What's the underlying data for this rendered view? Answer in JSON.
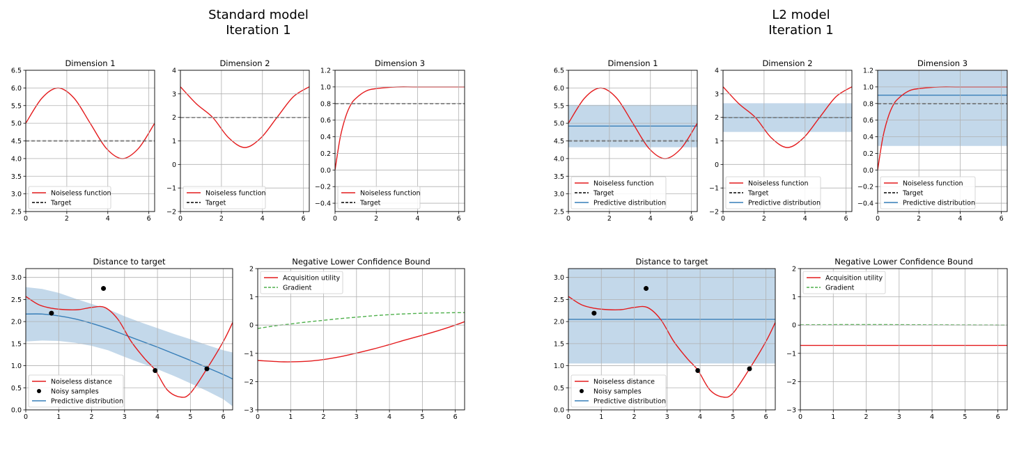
{
  "figures": [
    {
      "id": "standard",
      "title_line1": "Standard model",
      "title_line2": "Iteration 1",
      "subplots": [
        {
          "id": "dim1",
          "title": "Dimension 1",
          "has_pred": false
        },
        {
          "id": "dim2",
          "title": "Dimension 2",
          "has_pred": false
        },
        {
          "id": "dim3",
          "title": "Dimension 3",
          "has_pred": false
        },
        {
          "id": "dist",
          "title": "Distance to target"
        },
        {
          "id": "lcb",
          "title": "Negative Lower Confidence Bound"
        }
      ]
    },
    {
      "id": "l2",
      "title_line1": "L2 model",
      "title_line2": "Iteration 1",
      "subplots": [
        {
          "id": "dim1",
          "title": "Dimension 1",
          "has_pred": true
        },
        {
          "id": "dim2",
          "title": "Dimension 2",
          "has_pred": true
        },
        {
          "id": "dim3",
          "title": "Dimension 3",
          "has_pred": true
        },
        {
          "id": "dist",
          "title": "Distance to target"
        },
        {
          "id": "lcb",
          "title": "Negative Lower Confidence Bound"
        }
      ]
    }
  ],
  "legend_labels": {
    "noiseless_function": "Noiseless function",
    "target": "Target",
    "predictive_distribution": "Predictive distribution",
    "noiseless_distance": "Noiseless distance",
    "noisy_samples": "Noisy samples",
    "acquisition_utility": "Acquisition utility",
    "gradient": "Gradient"
  },
  "colors": {
    "noiseless": "#e41a1c",
    "target": "#000000",
    "predictive": "#377eb8",
    "band": "#b0cde3",
    "gradient": "#4daf4a",
    "grid": "#b0b0b0"
  },
  "chart_data": [
    {
      "type": "line",
      "figure": "Standard model",
      "title": "Dimension 1",
      "xlim": [
        0,
        6.283
      ],
      "ylim": [
        2.5,
        6.5
      ],
      "x_ticks": [
        "0",
        "2",
        "4",
        "6"
      ],
      "y_ticks": [
        "2.5",
        "3.0",
        "3.5",
        "4.0",
        "4.5",
        "5.0",
        "5.5",
        "6.0",
        "6.5"
      ],
      "series": [
        {
          "name": "Noiseless function",
          "x": [
            0,
            0.785,
            1.571,
            2.356,
            3.142,
            3.927,
            4.712,
            5.498,
            6.283
          ],
          "values": [
            5.0,
            5.71,
            6.0,
            5.71,
            5.0,
            4.29,
            4.0,
            4.29,
            5.0
          ]
        },
        {
          "name": "Target",
          "x": [
            0,
            6.283
          ],
          "values": [
            4.5,
            4.5
          ]
        }
      ]
    },
    {
      "type": "line",
      "figure": "Standard model",
      "title": "Dimension 2",
      "xlim": [
        0,
        6.283
      ],
      "ylim": [
        -2,
        4
      ],
      "x_ticks": [
        "0",
        "2",
        "4",
        "6"
      ],
      "y_ticks": [
        "−2",
        "−1",
        "0",
        "1",
        "2",
        "3",
        "4"
      ],
      "series": [
        {
          "name": "Noiseless function",
          "x": [
            0,
            0.785,
            1.571,
            2.356,
            3.142,
            3.927,
            4.712,
            5.498,
            6.283
          ],
          "values": [
            3.3,
            2.57,
            2.0,
            1.13,
            0.72,
            1.13,
            2.0,
            2.87,
            3.3
          ]
        },
        {
          "name": "Target",
          "x": [
            0,
            6.283
          ],
          "values": [
            2.0,
            2.0
          ]
        }
      ]
    },
    {
      "type": "line",
      "figure": "Standard model",
      "title": "Dimension 3",
      "xlim": [
        0,
        6.283
      ],
      "ylim": [
        -0.5,
        1.2
      ],
      "x_ticks": [
        "0",
        "2",
        "4",
        "6"
      ],
      "y_ticks": [
        "−0.4",
        "−0.2",
        "0.0",
        "0.2",
        "0.4",
        "0.6",
        "0.8",
        "1.0",
        "1.2"
      ],
      "series": [
        {
          "name": "Noiseless function",
          "x": [
            0,
            0.25,
            0.5,
            0.75,
            1.0,
            1.5,
            2.0,
            3.0,
            4.0,
            6.283
          ],
          "values": [
            0.0,
            0.39,
            0.63,
            0.78,
            0.86,
            0.95,
            0.98,
            1.0,
            1.0,
            1.0
          ]
        },
        {
          "name": "Target",
          "x": [
            0,
            6.283
          ],
          "values": [
            0.8,
            0.8
          ]
        }
      ]
    },
    {
      "type": "line",
      "figure": "Standard model",
      "title": "Distance to target",
      "xlim": [
        0,
        6.283
      ],
      "ylim": [
        0,
        3.2
      ],
      "x_ticks": [
        "0",
        "1",
        "2",
        "3",
        "4",
        "5",
        "6"
      ],
      "y_ticks": [
        "0.0",
        "0.5",
        "1.0",
        "1.5",
        "2.0",
        "2.5",
        "3.0"
      ],
      "series": [
        {
          "name": "Noiseless distance",
          "x": [
            0,
            0.4,
            0.8,
            1.2,
            1.6,
            2.0,
            2.4,
            2.8,
            3.2,
            3.6,
            3.93,
            4.3,
            4.7,
            5.0,
            5.5,
            6.0,
            6.283
          ],
          "values": [
            2.57,
            2.38,
            2.3,
            2.27,
            2.27,
            2.32,
            2.32,
            2.05,
            1.55,
            1.17,
            0.9,
            0.45,
            0.29,
            0.38,
            0.93,
            1.55,
            1.98
          ]
        },
        {
          "name": "Predictive distribution",
          "x": [
            0,
            0.5,
            1.0,
            1.5,
            2.0,
            2.5,
            3.0,
            3.5,
            4.0,
            4.5,
            5.0,
            5.5,
            6.0,
            6.283
          ],
          "values": [
            2.17,
            2.17,
            2.13,
            2.06,
            1.96,
            1.84,
            1.7,
            1.56,
            1.42,
            1.27,
            1.12,
            0.96,
            0.8,
            0.7
          ],
          "upper": [
            2.78,
            2.74,
            2.65,
            2.52,
            2.4,
            2.28,
            2.12,
            1.98,
            1.85,
            1.72,
            1.6,
            1.47,
            1.35,
            1.3
          ],
          "lower": [
            1.55,
            1.57,
            1.56,
            1.52,
            1.45,
            1.35,
            1.2,
            1.06,
            0.92,
            0.77,
            0.6,
            0.43,
            0.24,
            0.08
          ]
        },
        {
          "name": "Noisy samples",
          "type": "scatter",
          "x": [
            0.78,
            2.36,
            3.93,
            5.5
          ],
          "values": [
            2.19,
            2.75,
            0.89,
            0.93
          ]
        }
      ]
    },
    {
      "type": "line",
      "figure": "Standard model",
      "title": "Negative Lower Confidence Bound",
      "xlim": [
        0,
        6.283
      ],
      "ylim": [
        -3,
        2
      ],
      "x_ticks": [
        "0",
        "1",
        "2",
        "3",
        "4",
        "5",
        "6"
      ],
      "y_ticks": [
        "−3",
        "−2",
        "−1",
        "0",
        "1",
        "2"
      ],
      "series": [
        {
          "name": "Acquisition utility",
          "x": [
            0,
            0.8,
            1.5,
            2.0,
            2.5,
            3.0,
            3.5,
            4.0,
            4.5,
            5.0,
            5.5,
            6.0,
            6.283
          ],
          "values": [
            -1.25,
            -1.3,
            -1.28,
            -1.22,
            -1.12,
            -0.99,
            -0.85,
            -0.69,
            -0.52,
            -0.36,
            -0.19,
            -0.0,
            0.12
          ]
        },
        {
          "name": "Gradient",
          "x": [
            0,
            0.5,
            1.0,
            1.5,
            2.0,
            2.5,
            3.0,
            3.5,
            4.0,
            4.5,
            5.0,
            5.5,
            6.0,
            6.283
          ],
          "values": [
            -0.12,
            -0.03,
            0.04,
            0.11,
            0.17,
            0.23,
            0.28,
            0.33,
            0.37,
            0.4,
            0.42,
            0.43,
            0.44,
            0.44
          ]
        }
      ]
    },
    {
      "type": "line",
      "figure": "L2 model",
      "title": "Dimension 1",
      "xlim": [
        0,
        6.283
      ],
      "ylim": [
        2.5,
        6.5
      ],
      "x_ticks": [
        "0",
        "2",
        "4",
        "6"
      ],
      "y_ticks": [
        "2.5",
        "3.0",
        "3.5",
        "4.0",
        "4.5",
        "5.0",
        "5.5",
        "6.0",
        "6.5"
      ],
      "series": [
        {
          "name": "Noiseless function",
          "x": [
            0,
            0.785,
            1.571,
            2.356,
            3.142,
            3.927,
            4.712,
            5.498,
            6.283
          ],
          "values": [
            5.0,
            5.71,
            6.0,
            5.71,
            5.0,
            4.29,
            4.0,
            4.29,
            5.0
          ]
        },
        {
          "name": "Target",
          "x": [
            0,
            6.283
          ],
          "values": [
            4.5,
            4.5
          ]
        },
        {
          "name": "Predictive distribution",
          "x": [
            0,
            6.283
          ],
          "values": [
            4.92,
            4.92
          ],
          "upper": [
            5.52,
            5.52
          ],
          "lower": [
            4.32,
            4.32
          ]
        }
      ]
    },
    {
      "type": "line",
      "figure": "L2 model",
      "title": "Dimension 2",
      "xlim": [
        0,
        6.283
      ],
      "ylim": [
        -2,
        4
      ],
      "x_ticks": [
        "0",
        "2",
        "4",
        "6"
      ],
      "y_ticks": [
        "−2",
        "−1",
        "0",
        "1",
        "2",
        "3",
        "4"
      ],
      "series": [
        {
          "name": "Noiseless function",
          "x": [
            0,
            0.785,
            1.571,
            2.356,
            3.142,
            3.927,
            4.712,
            5.498,
            6.283
          ],
          "values": [
            3.3,
            2.57,
            2.0,
            1.13,
            0.72,
            1.13,
            2.0,
            2.87,
            3.3
          ]
        },
        {
          "name": "Target",
          "x": [
            0,
            6.283
          ],
          "values": [
            2.0,
            2.0
          ]
        },
        {
          "name": "Predictive distribution",
          "x": [
            0,
            6.283
          ],
          "values": [
            2.0,
            2.0
          ],
          "upper": [
            2.6,
            2.6
          ],
          "lower": [
            1.38,
            1.38
          ]
        }
      ]
    },
    {
      "type": "line",
      "figure": "L2 model",
      "title": "Dimension 3",
      "xlim": [
        0,
        6.283
      ],
      "ylim": [
        -0.5,
        1.2
      ],
      "x_ticks": [
        "0",
        "2",
        "4",
        "6"
      ],
      "y_ticks": [
        "−0.4",
        "−0.2",
        "0.0",
        "0.2",
        "0.4",
        "0.6",
        "0.8",
        "1.0",
        "1.2"
      ],
      "series": [
        {
          "name": "Noiseless function",
          "x": [
            0,
            0.25,
            0.5,
            0.75,
            1.0,
            1.5,
            2.0,
            3.0,
            4.0,
            6.283
          ],
          "values": [
            0.0,
            0.39,
            0.63,
            0.78,
            0.86,
            0.95,
            0.98,
            1.0,
            1.0,
            1.0
          ]
        },
        {
          "name": "Target",
          "x": [
            0,
            6.283
          ],
          "values": [
            0.8,
            0.8
          ]
        },
        {
          "name": "Predictive distribution",
          "x": [
            0,
            6.283
          ],
          "values": [
            0.9,
            0.9
          ],
          "upper": [
            1.22,
            1.22
          ],
          "lower": [
            0.29,
            0.29
          ]
        }
      ]
    },
    {
      "type": "line",
      "figure": "L2 model",
      "title": "Distance to target",
      "xlim": [
        0,
        6.283
      ],
      "ylim": [
        0,
        3.2
      ],
      "x_ticks": [
        "0",
        "1",
        "2",
        "3",
        "4",
        "5",
        "6"
      ],
      "y_ticks": [
        "0.0",
        "0.5",
        "1.0",
        "1.5",
        "2.0",
        "2.5",
        "3.0"
      ],
      "series": [
        {
          "name": "Noiseless distance",
          "x": [
            0,
            0.4,
            0.8,
            1.2,
            1.6,
            2.0,
            2.4,
            2.8,
            3.2,
            3.6,
            3.93,
            4.3,
            4.7,
            5.0,
            5.5,
            6.0,
            6.283
          ],
          "values": [
            2.57,
            2.38,
            2.3,
            2.27,
            2.27,
            2.32,
            2.32,
            2.05,
            1.55,
            1.17,
            0.9,
            0.45,
            0.29,
            0.38,
            0.93,
            1.55,
            1.98
          ]
        },
        {
          "name": "Predictive distribution",
          "x": [
            0,
            6.283
          ],
          "values": [
            2.05,
            2.05
          ],
          "upper": [
            3.2,
            3.2
          ],
          "lower": [
            1.05,
            1.05
          ]
        },
        {
          "name": "Noisy samples",
          "type": "scatter",
          "x": [
            0.78,
            2.36,
            3.93,
            5.5
          ],
          "values": [
            2.19,
            2.75,
            0.89,
            0.93
          ]
        }
      ]
    },
    {
      "type": "line",
      "figure": "L2 model",
      "title": "Negative Lower Confidence Bound",
      "xlim": [
        0,
        6.283
      ],
      "ylim": [
        -3,
        2
      ],
      "x_ticks": [
        "0",
        "1",
        "2",
        "3",
        "4",
        "5",
        "6"
      ],
      "y_ticks": [
        "−3",
        "−2",
        "−1",
        "0",
        "1",
        "2"
      ],
      "series": [
        {
          "name": "Acquisition utility",
          "x": [
            0,
            6.283
          ],
          "values": [
            -0.72,
            -0.72
          ]
        },
        {
          "name": "Gradient",
          "x": [
            0,
            2.0,
            4.0,
            6.283
          ],
          "values": [
            0.01,
            0.02,
            0.01,
            0.0
          ]
        }
      ]
    }
  ]
}
